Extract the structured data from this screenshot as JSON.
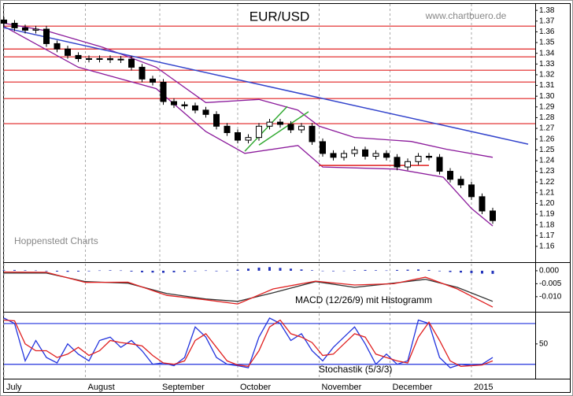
{
  "chart_data": [
    {
      "type": "candlestick",
      "title": "EUR/USD",
      "source": "www.chartbuero.de",
      "credit": "Hoppenstedt Charts",
      "x": [
        0,
        3,
        6,
        9,
        12,
        15,
        18,
        21,
        24,
        27,
        30,
        33,
        36,
        39,
        42,
        45,
        48,
        51,
        54,
        57,
        60,
        63,
        66,
        69,
        72,
        75,
        78,
        81,
        84,
        87,
        90,
        93,
        96,
        99,
        102,
        105,
        108,
        111,
        114,
        117,
        120,
        123,
        126,
        129,
        132,
        135,
        138
      ],
      "open": [
        1.371,
        1.368,
        1.3637,
        1.3615,
        1.3625,
        1.349,
        1.344,
        1.338,
        1.335,
        1.3345,
        1.335,
        1.334,
        1.3345,
        1.327,
        1.316,
        1.313,
        1.295,
        1.292,
        1.291,
        1.287,
        1.283,
        1.272,
        1.266,
        1.259,
        1.2615,
        1.272,
        1.2758,
        1.2737,
        1.2686,
        1.272,
        1.2576,
        1.2466,
        1.243,
        1.2466,
        1.25,
        1.244,
        1.2466,
        1.243,
        1.234,
        1.239,
        1.244,
        1.243,
        1.23,
        1.2225,
        1.2173,
        1.2063,
        1.193
      ],
      "high": [
        1.374,
        1.371,
        1.3667,
        1.3655,
        1.3655,
        1.352,
        1.347,
        1.341,
        1.338,
        1.338,
        1.338,
        1.3375,
        1.3375,
        1.33,
        1.319,
        1.316,
        1.298,
        1.295,
        1.294,
        1.29,
        1.286,
        1.275,
        1.269,
        1.2645,
        1.275,
        1.2788,
        1.2788,
        1.2767,
        1.275,
        1.275,
        1.2606,
        1.2496,
        1.2496,
        1.253,
        1.253,
        1.2496,
        1.2496,
        1.246,
        1.242,
        1.247,
        1.247,
        1.246,
        1.233,
        1.2255,
        1.2203,
        1.2093,
        1.196
      ],
      "low": [
        1.365,
        1.3607,
        1.3585,
        1.3585,
        1.346,
        1.341,
        1.335,
        1.332,
        1.3315,
        1.3315,
        1.331,
        1.331,
        1.324,
        1.313,
        1.31,
        1.292,
        1.289,
        1.288,
        1.284,
        1.28,
        1.269,
        1.263,
        1.256,
        1.256,
        1.2585,
        1.269,
        1.2707,
        1.2656,
        1.2656,
        1.2546,
        1.2436,
        1.24,
        1.24,
        1.2436,
        1.241,
        1.241,
        1.24,
        1.231,
        1.231,
        1.236,
        1.24,
        1.227,
        1.2195,
        1.2143,
        1.2033,
        1.19,
        1.181
      ],
      "close": [
        1.368,
        1.3637,
        1.3615,
        1.3625,
        1.349,
        1.344,
        1.338,
        1.335,
        1.3345,
        1.335,
        1.334,
        1.3345,
        1.327,
        1.316,
        1.313,
        1.295,
        1.292,
        1.291,
        1.287,
        1.283,
        1.272,
        1.266,
        1.259,
        1.2615,
        1.272,
        1.2758,
        1.2737,
        1.2686,
        1.272,
        1.2576,
        1.2466,
        1.243,
        1.2466,
        1.25,
        1.244,
        1.2466,
        1.243,
        1.234,
        1.239,
        1.244,
        1.243,
        1.23,
        1.2225,
        1.2173,
        1.2063,
        1.193,
        1.184
      ],
      "series": [
        {
          "color": "#8b1a9b",
          "x": [
            0,
            12,
            28,
            43,
            57,
            72,
            83,
            89,
            99,
            115,
            125,
            138
          ],
          "values": [
            1.368,
            1.361,
            1.3455,
            1.327,
            1.294,
            1.297,
            1.287,
            1.272,
            1.2615,
            1.2578,
            1.2505,
            1.243
          ]
        },
        {
          "color": "#8b1a9b",
          "x": [
            0,
            21,
            43,
            57,
            68,
            83,
            90,
            111,
            124,
            132,
            138
          ],
          "values": [
            1.365,
            1.327,
            1.307,
            1.267,
            1.2467,
            1.254,
            1.234,
            1.232,
            1.2245,
            1.1953,
            1.179
          ]
        }
      ],
      "trendlines": [
        {
          "color": "#3344cc",
          "x": [
            0,
            148
          ],
          "values": [
            1.3638,
            1.2553
          ]
        },
        {
          "color": "#33aa33",
          "x": [
            68,
            80
          ],
          "values": [
            1.2487,
            1.2905
          ]
        },
        {
          "color": "#33aa33",
          "x": [
            72,
            86
          ],
          "values": [
            1.2545,
            1.2855
          ]
        },
        {
          "color": "#e02020",
          "x": [
            89,
            120
          ],
          "values": [
            1.2355,
            1.2355
          ]
        }
      ],
      "hlines": {
        "color": "#e02020",
        "values": [
          1.3653,
          1.344,
          1.3367,
          1.3242,
          1.3132,
          1.2978,
          1.2744
        ]
      },
      "xlim": [
        0,
        150
      ],
      "ylim": [
        1.146,
        1.386
      ],
      "yticks": [
        1.16,
        1.17,
        1.18,
        1.19,
        {
          "value": 1.2,
          "label": "1.20"
        },
        1.21,
        1.22,
        1.23,
        1.24,
        1.25,
        1.26,
        1.27,
        1.28,
        1.29,
        {
          "value": 1.3,
          "label": "1.30"
        },
        1.31,
        1.32,
        1.33,
        1.34,
        1.35,
        1.36,
        1.37,
        1.38
      ]
    },
    {
      "type": "line",
      "label": "MACD (12/26/9) mit Histogramm",
      "series": [
        {
          "color": "#333333",
          "x": [
            0,
            12,
            23,
            35,
            46,
            57,
            66,
            76,
            88,
            99,
            110,
            119,
            128,
            138
          ],
          "values": [
            -0.0009,
            -0.0009,
            -0.0042,
            -0.0048,
            -0.0088,
            -0.0109,
            -0.0118,
            -0.0085,
            -0.0042,
            -0.0064,
            -0.0048,
            -0.0033,
            -0.0064,
            -0.0118
          ]
        },
        {
          "color": "#e02020",
          "x": [
            0,
            12,
            23,
            35,
            46,
            57,
            66,
            76,
            88,
            99,
            110,
            119,
            128,
            138
          ],
          "values": [
            -0.0005,
            -0.0006,
            -0.0045,
            -0.0044,
            -0.0095,
            -0.0112,
            -0.0128,
            -0.007,
            -0.004,
            -0.0055,
            -0.005,
            -0.0025,
            -0.007,
            -0.014
          ]
        }
      ],
      "histogram": {
        "color": "#2233bb",
        "values": [
          0.0002,
          0.0003,
          0.0002,
          0.0001,
          -0.0002,
          -0.0003,
          -0.0004,
          -0.0003,
          -0.0002,
          0.0001,
          0.0002,
          0.0001,
          -0.0003,
          -0.0006,
          -0.0007,
          -0.0008,
          -0.0006,
          -0.0004,
          -0.0002,
          0.0001,
          -0.0002,
          -0.0001,
          0.0004,
          0.0008,
          0.0012,
          0.0014,
          0.0011,
          0.0008,
          0.0005,
          0.0002,
          -0.0001,
          -0.0002,
          -0.0001,
          0.0002,
          0.0003,
          0.0002,
          0.0001,
          0.0003,
          0.0004,
          0.0005,
          0.0003,
          -0.0002,
          -0.0005,
          -0.0007,
          -0.0009,
          -0.0011,
          -0.0012
        ]
      },
      "xlim": [
        0,
        150
      ],
      "ylim": [
        -0.0155,
        0.0027
      ],
      "yticks": [
        {
          "value": 0,
          "label": "0.000"
        },
        {
          "value": -0.005,
          "label": "-0.005"
        },
        {
          "value": -0.01,
          "label": "-0.010"
        }
      ]
    },
    {
      "type": "line",
      "label": "Stochastik (5/3/3)",
      "series": [
        {
          "color": "#2233dd",
          "values": [
            88,
            80,
            25,
            55,
            30,
            22,
            50,
            35,
            25,
            55,
            60,
            45,
            55,
            40,
            20,
            22,
            18,
            30,
            75,
            60,
            30,
            20,
            18,
            15,
            60,
            88,
            80,
            55,
            65,
            40,
            25,
            45,
            60,
            75,
            50,
            20,
            35,
            20,
            25,
            85,
            80,
            30,
            15,
            20,
            18,
            20,
            30
          ]
        },
        {
          "color": "#e02020",
          "values": [
            85,
            84,
            50,
            40,
            40,
            30,
            35,
            45,
            33,
            40,
            55,
            52,
            50,
            47,
            33,
            22,
            20,
            25,
            55,
            65,
            45,
            25,
            19,
            17,
            40,
            75,
            85,
            65,
            60,
            52,
            33,
            35,
            50,
            65,
            60,
            35,
            30,
            25,
            22,
            60,
            82,
            55,
            25,
            17,
            18,
            19,
            25
          ]
        }
      ],
      "levels": {
        "color": "#2233dd",
        "values": [
          20,
          80
        ]
      },
      "xlim": [
        0,
        150
      ],
      "ylim": [
        0,
        95
      ],
      "yticks": [
        50
      ],
      "xticks": [
        {
          "value": 0,
          "label": "July"
        },
        {
          "value": 23,
          "label": "August"
        },
        {
          "value": 44,
          "label": "September"
        },
        {
          "value": 66,
          "label": "October"
        },
        {
          "value": 89,
          "label": "November"
        },
        {
          "value": 109,
          "label": "December"
        },
        {
          "value": 132,
          "label": "2015"
        }
      ]
    }
  ]
}
